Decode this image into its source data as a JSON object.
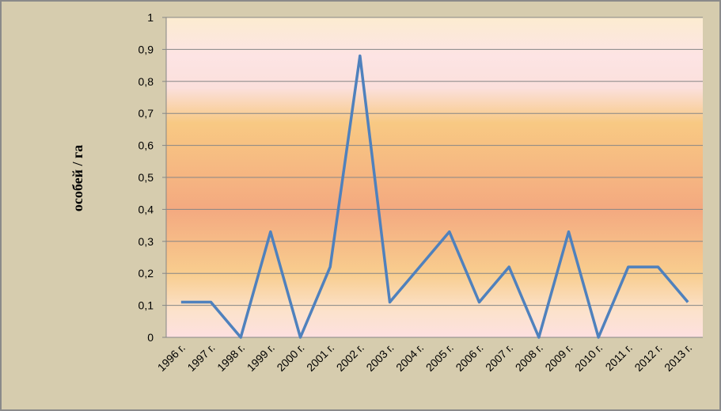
{
  "chart_data": {
    "type": "line",
    "y_label": "особей / га",
    "categories": [
      "1996 г.",
      "1997 г.",
      "1998 г.",
      "1999 г.",
      "2000 г.",
      "2001 г.",
      "2002 г.",
      "2003 г.",
      "2004 г.",
      "2005 г.",
      "2006 г.",
      "2007 г.",
      "2008 г.",
      "2009 г.",
      "2010 г.",
      "2011 г.",
      "2012 г.",
      "2013 г."
    ],
    "values": [
      0.11,
      0.11,
      0,
      0.33,
      0,
      0.22,
      0.88,
      0.11,
      0.22,
      0.33,
      0.11,
      0.22,
      0,
      0.33,
      0,
      0.22,
      0.22,
      0.11
    ],
    "color": "#4f81bd",
    "ylim": [
      0,
      1
    ],
    "yticks": [
      0,
      {
        "value": 0.1,
        "label": "0,1"
      },
      {
        "value": 0.2,
        "label": "0,2"
      },
      {
        "value": 0.3,
        "label": "0,3"
      },
      {
        "value": 0.4,
        "label": "0,4"
      },
      {
        "value": 0.5,
        "label": "0,5"
      },
      {
        "value": 0.6,
        "label": "0,6"
      },
      {
        "value": 0.7,
        "label": "0,7"
      },
      {
        "value": 0.8,
        "label": "0,8"
      },
      {
        "value": 0.9,
        "label": "0,9"
      },
      1
    ],
    "grid": true
  }
}
